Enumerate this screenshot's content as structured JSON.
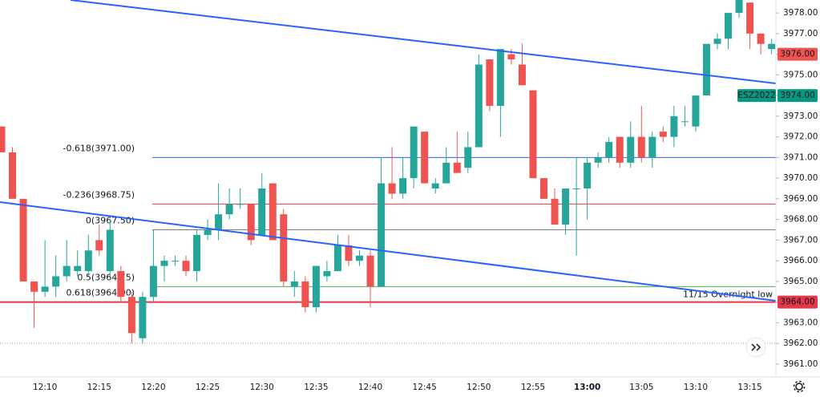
{
  "chart_data": {
    "type": "candlestick",
    "categories": [
      null,
      null,
      null,
      null,
      "12:10",
      null,
      null,
      null,
      null,
      "12:15",
      null,
      null,
      null,
      null,
      "12:20",
      null,
      null,
      null,
      null,
      "12:25",
      null,
      null,
      null,
      null,
      "12:30",
      null,
      null,
      null,
      null,
      "12:35",
      null,
      null,
      null,
      null,
      "12:40",
      null,
      null,
      null,
      null,
      "12:45",
      null,
      null,
      null,
      null,
      "12:50",
      null,
      null,
      null,
      null,
      "12:55",
      null,
      null,
      null,
      null,
      "13:00",
      null,
      null,
      null,
      null,
      "13:05",
      null,
      null,
      null,
      null,
      "13:10",
      null,
      null,
      null,
      null,
      "13:15",
      null,
      null
    ],
    "open": [
      3972.5,
      3971.25,
      3969,
      3965,
      3964.5,
      3964.75,
      3965.25,
      3965.5,
      3965.5,
      3967,
      3965.5,
      3965.5,
      3964.25,
      3962.25,
      3964.25,
      3965.75,
      3966,
      3966,
      3965.5,
      3967.25,
      3967.5,
      3968.25,
      3968.75,
      3968.75,
      3967.25,
      3969.75,
      3968.25,
      3964.75,
      3965,
      3963.75,
      3965.25,
      3965.5,
      3966.75,
      3966,
      3966.25,
      3964.75,
      3969.75,
      3969.25,
      3970,
      3972.25,
      3969.5,
      3969.75,
      3970.75,
      3970.5,
      3971.5,
      3975.75,
      3973.5,
      3976,
      3975.5,
      3974.25,
      3970,
      3969,
      3967.75,
      3969.5,
      3969.5,
      3970.75,
      3971,
      3972,
      3970.75,
      3972,
      3971,
      3972.25,
      3972,
      3972.75,
      3972.5,
      3974,
      3976.5,
      3976.75,
      3978,
      3978.5,
      3977,
      3976.25
    ],
    "high": [
      3972.5,
      3971.5,
      3969,
      3965,
      3967,
      3966.25,
      3967,
      3966.5,
      3967.25,
      3967.75,
      3968,
      3965.75,
      3964.5,
      3964.5,
      3967.5,
      3966.25,
      3966.25,
      3966.25,
      3967.5,
      3968,
      3969.75,
      3969.5,
      3969.5,
      3968.75,
      3970.25,
      3969.75,
      3968.5,
      3965.5,
      3965.25,
      3965.75,
      3966,
      3967.25,
      3967.25,
      3966.5,
      3966.5,
      3971,
      3971.5,
      3971,
      3972.5,
      3972.25,
      3970,
      3971.5,
      3972.25,
      3972.25,
      3976,
      3975.75,
      3976.25,
      3976.25,
      3976.5,
      3974.25,
      3970,
      3969.5,
      3969.5,
      3971,
      3971,
      3971.25,
      3972,
      3972,
      3972.75,
      3973.5,
      3972.25,
      3972.5,
      3973.5,
      3973.5,
      3974,
      3976.5,
      3977,
      3978,
      3978.75,
      3978.5,
      3977,
      3976.75
    ],
    "low": [
      3971.25,
      3969,
      3965,
      3962.75,
      3964.25,
      3964.25,
      3965,
      3965.25,
      3965.25,
      3966.25,
      3965.25,
      3964,
      3962,
      3962,
      3964,
      3965,
      3965.75,
      3965.25,
      3965,
      3967,
      3967,
      3968,
      3968.5,
      3966.75,
      3967.25,
      3967,
      3964.75,
      3964.25,
      3963.5,
      3963.5,
      3965,
      3965.5,
      3965.75,
      3965.75,
      3963.75,
      3964.75,
      3969,
      3969,
      3969.5,
      3969.75,
      3969.25,
      3969.75,
      3970.25,
      3970.25,
      3971.5,
      3973.25,
      3972,
      3975.5,
      3974.5,
      3970,
      3969,
      3967.75,
      3967.25,
      3966.25,
      3968,
      3970.5,
      3970.75,
      3970.5,
      3970.5,
      3970.75,
      3970.5,
      3971.75,
      3971.5,
      3972.5,
      3972.25,
      3974,
      3976.25,
      3976.25,
      3977.75,
      3976.25,
      3976,
      3976
    ],
    "close": [
      3971.25,
      3969,
      3965,
      3964.5,
      3964.75,
      3965.25,
      3965.75,
      3965.75,
      3966.5,
      3966.5,
      3967.5,
      3964.25,
      3962.5,
      3964.25,
      3965.75,
      3966,
      3966,
      3965.5,
      3967.25,
      3967.5,
      3968.25,
      3968.75,
      3968.75,
      3967,
      3969.5,
      3967,
      3965,
      3965,
      3963.75,
      3965.75,
      3965.5,
      3966.75,
      3966,
      3966.25,
      3964.75,
      3969.75,
      3969.25,
      3970,
      3972.5,
      3969.75,
      3969.75,
      3970.75,
      3970.25,
      3971.5,
      3975.5,
      3973.5,
      3976.25,
      3975.75,
      3974.5,
      3970,
      3969,
      3967.75,
      3969.5,
      3969.5,
      3970.75,
      3971,
      3971.75,
      3970.75,
      3972,
      3971,
      3972,
      3972,
      3973,
      3972.75,
      3974,
      3976.5,
      3976.75,
      3978,
      3978.75,
      3977,
      3976.5,
      3976.5
    ],
    "up_color": "#26a69a",
    "down_color": "#ef5350",
    "ylim": [
      3960.375,
      3978.625
    ],
    "yticks": [
      {
        "value": 3961,
        "label": "3961.00"
      },
      {
        "value": 3962,
        "label": "3962.00"
      },
      {
        "value": 3963,
        "label": "3963.00"
      },
      {
        "value": 3964,
        "label": "3964.00"
      },
      {
        "value": 3965,
        "label": "3965.00"
      },
      {
        "value": 3966,
        "label": "3966.00"
      },
      {
        "value": 3967,
        "label": "3967.00"
      },
      {
        "value": 3968,
        "label": "3968.00"
      },
      {
        "value": 3969,
        "label": "3969.00"
      },
      {
        "value": 3970,
        "label": "3970.00"
      },
      {
        "value": 3971,
        "label": "3971.00"
      },
      {
        "value": 3972,
        "label": "3972.00"
      },
      {
        "value": 3973,
        "label": "3973.00"
      },
      {
        "value": 3974,
        "label": "3974.00"
      },
      {
        "value": 3975,
        "label": "3975.00"
      },
      {
        "value": 3976,
        "label": "3976.00"
      },
      {
        "value": 3977,
        "label": "3977.00"
      },
      {
        "value": 3978,
        "label": "3978.00"
      }
    ],
    "levels": [
      {
        "label": "-0.618(3971.00)",
        "value": 3971,
        "color": "#2962ff"
      },
      {
        "label": "-0.236(3968.75)",
        "value": 3968.75,
        "color": "#f23645"
      },
      {
        "label": "0(3967.50)",
        "value": 3967.5,
        "color": "#787b86"
      },
      {
        "label": "0.5(3964.75)",
        "value": 3964.75,
        "color": "#4caf50"
      },
      {
        "label": "0.618(3964.00)",
        "value": 3964,
        "color": "#089981"
      }
    ],
    "support": {
      "label": "11/15 Overnight low",
      "value": 3964,
      "color": "#e5364a"
    },
    "price_tags": [
      {
        "label": "3976.00",
        "value": 3976,
        "color": "#ef5350"
      },
      {
        "name": "ESZ2022",
        "label": "3974.00",
        "value": 3974,
        "color": "#089981"
      },
      {
        "label": "3964.00",
        "value": 3964,
        "color": "#e5364a"
      }
    ]
  }
}
